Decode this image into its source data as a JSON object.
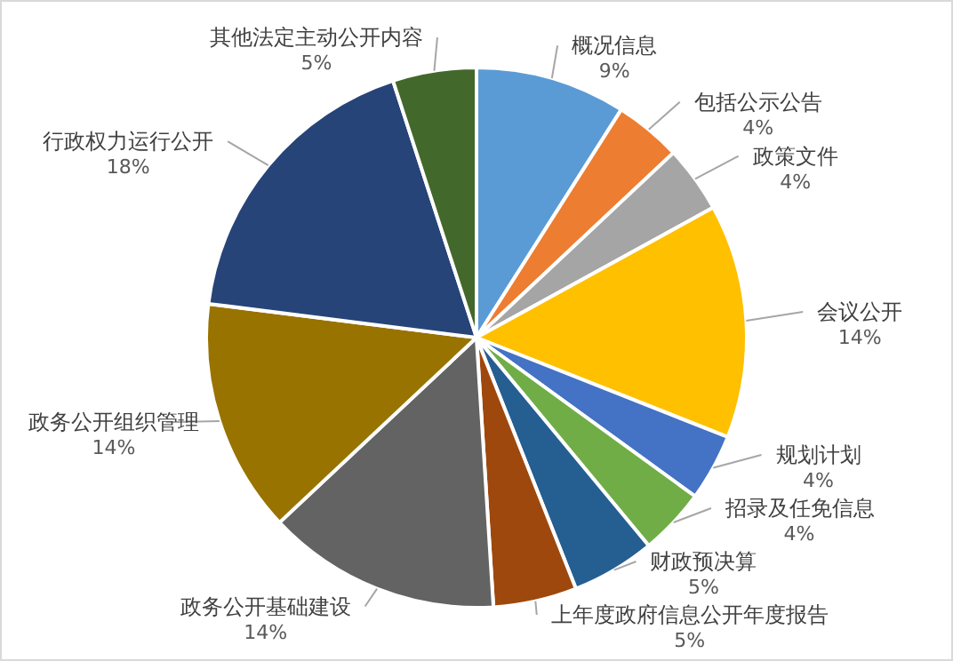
{
  "chart_data": {
    "type": "pie",
    "categories": [
      "概况信息",
      "包括公示公告",
      "政策文件",
      "会议公开",
      "规划计划",
      "招录及任免信息",
      "财政预决算",
      "上年度政府信息公开年度报告",
      "政务公开基础建设",
      "政务公开组织管理",
      "行政权力运行公开",
      "其他法定主动公开内容"
    ],
    "values": [
      9,
      4,
      4,
      14,
      4,
      4,
      5,
      5,
      14,
      14,
      18,
      5
    ],
    "colors": [
      "#5b9bd5",
      "#ed7d31",
      "#a5a5a5",
      "#ffc000",
      "#4472c4",
      "#70ad47",
      "#255e91",
      "#9e480e",
      "#636363",
      "#997300",
      "#264478",
      "#43682b"
    ],
    "value_labels": [
      "9%",
      "4%",
      "4%",
      "14%",
      "4%",
      "4%",
      "5%",
      "5%",
      "14%",
      "14%",
      "18%",
      "5%"
    ]
  }
}
